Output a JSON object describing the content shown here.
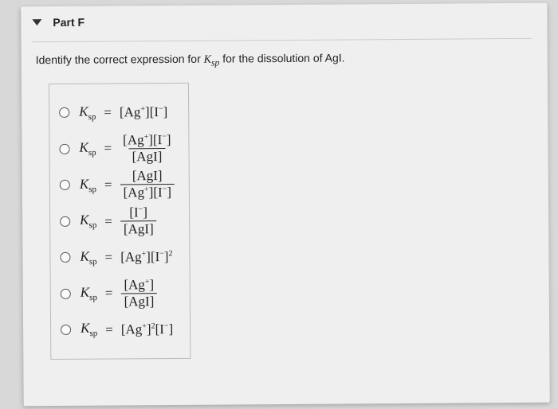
{
  "part": {
    "label": "Part F"
  },
  "prompt": {
    "before": "Identify the correct expression for ",
    "ksp_html": "K<sub>sp</sub>",
    "after": " for the dissolution of AgI."
  },
  "ksp_label": "K",
  "ksp_sub": "sp",
  "equals": "=",
  "options": [
    {
      "type": "inline",
      "rhs": "[Ag<sup>+</sup>][I<sup>−</sup>]"
    },
    {
      "type": "frac",
      "num": "[Ag<sup>+</sup>][I<sup>−</sup>]",
      "den": "[AgI]"
    },
    {
      "type": "frac",
      "num": "[AgI]",
      "den": "[Ag<sup>+</sup>][I<sup>−</sup>]"
    },
    {
      "type": "frac",
      "num": "[I<sup>−</sup>]",
      "den": "[AgI]"
    },
    {
      "type": "inline",
      "rhs": "[Ag<sup>+</sup>][I<sup>−</sup>]<sup>2</sup>"
    },
    {
      "type": "frac",
      "num": "[Ag<sup>+</sup>]",
      "den": "[AgI]"
    },
    {
      "type": "inline",
      "rhs": "[Ag<sup>+</sup>]<sup>2</sup>[I<sup>−</sup>]"
    }
  ]
}
